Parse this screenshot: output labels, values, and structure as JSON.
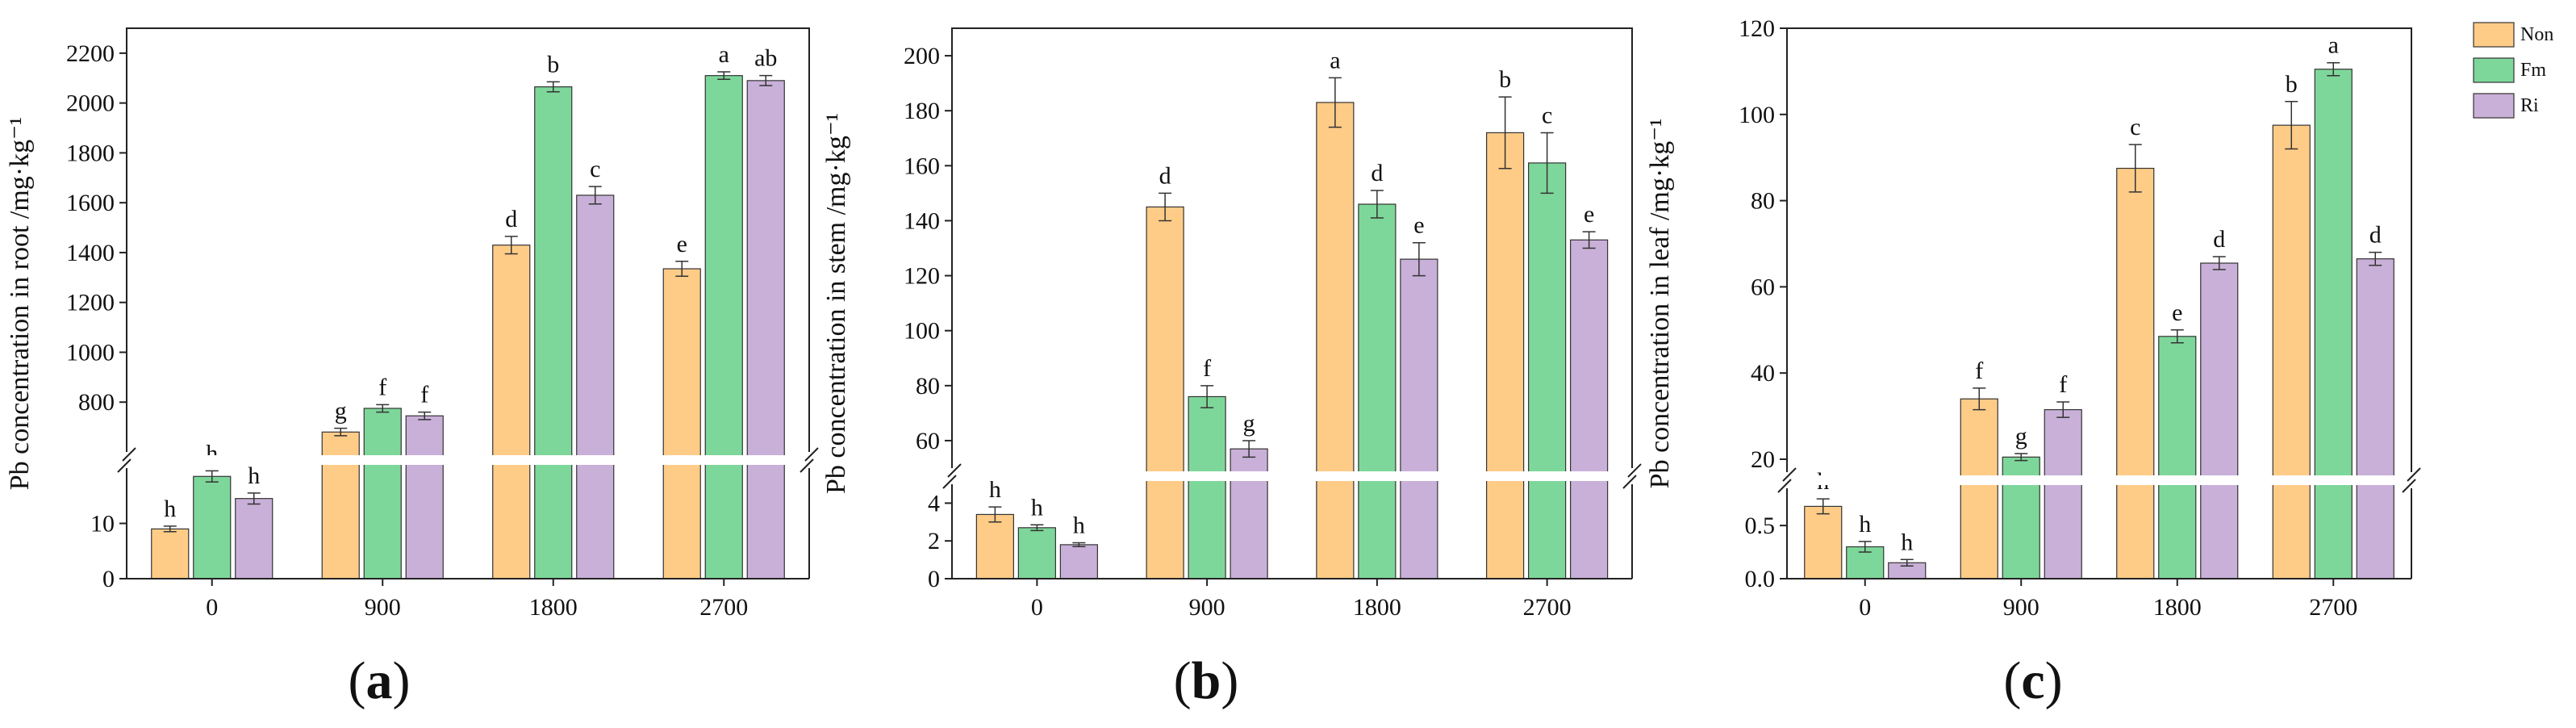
{
  "legend": {
    "entries": [
      "Non",
      "Fm",
      "Ri"
    ],
    "colors": [
      "#FFCC88",
      "#7ED79A",
      "#C9B0D8"
    ]
  },
  "chart_data": [
    {
      "type": "bar",
      "panel_label": "a",
      "ylabel": "Pb concentration in root /mg·kg⁻¹",
      "xlabel": "",
      "categories": [
        "0",
        "900",
        "1800",
        "2700"
      ],
      "series": [
        {
          "name": "Non",
          "values": [
            9,
            680,
            1430,
            1335
          ],
          "errors": [
            0.5,
            15,
            35,
            30
          ],
          "letters": [
            "h",
            "g",
            "d",
            "e"
          ]
        },
        {
          "name": "Fm",
          "values": [
            18.5,
            775,
            2065,
            2110
          ],
          "errors": [
            1,
            15,
            20,
            15
          ],
          "letters": [
            "h",
            "f",
            "b",
            "a"
          ]
        },
        {
          "name": "Ri",
          "values": [
            14.5,
            745,
            1630,
            2090
          ],
          "errors": [
            1,
            15,
            35,
            20
          ],
          "letters": [
            "h",
            "f",
            "c",
            "ab"
          ]
        }
      ],
      "axis_break": {
        "lower_range": [
          0,
          20
        ],
        "upper_range": [
          600,
          2300
        ]
      },
      "lower_ticks": [
        0,
        10
      ],
      "upper_ticks": [
        800,
        1000,
        1200,
        1400,
        1600,
        1800,
        2000,
        2200
      ]
    },
    {
      "type": "bar",
      "panel_label": "b",
      "ylabel": "Pb concentration in stem /mg·kg⁻¹",
      "xlabel": "",
      "categories": [
        "0",
        "900",
        "1800",
        "2700"
      ],
      "series": [
        {
          "name": "Non",
          "values": [
            3.4,
            145,
            183,
            172
          ],
          "errors": [
            0.4,
            5,
            9,
            13
          ],
          "letters": [
            "h",
            "d",
            "a",
            "b"
          ]
        },
        {
          "name": "Fm",
          "values": [
            2.7,
            76,
            146,
            161
          ],
          "errors": [
            0.15,
            4,
            5,
            11
          ],
          "letters": [
            "h",
            "f",
            "d",
            "c"
          ]
        },
        {
          "name": "Ri",
          "values": [
            1.8,
            57,
            126,
            133
          ],
          "errors": [
            0.1,
            3,
            6,
            3
          ],
          "letters": [
            "h",
            "g",
            "e",
            "e"
          ]
        }
      ],
      "axis_break": {
        "lower_range": [
          0,
          5
        ],
        "upper_range": [
          50,
          210
        ]
      },
      "lower_ticks": [
        0,
        2,
        4
      ],
      "upper_ticks": [
        60,
        80,
        100,
        120,
        140,
        160,
        180,
        200
      ]
    },
    {
      "type": "bar",
      "panel_label": "c",
      "ylabel": "Pb concentration in leaf /mg·kg⁻¹",
      "xlabel": "",
      "categories": [
        "0",
        "900",
        "1800",
        "2700"
      ],
      "series": [
        {
          "name": "Non",
          "values": [
            0.68,
            34,
            87.5,
            97.5
          ],
          "errors": [
            0.07,
            2.5,
            5.5,
            5.5
          ],
          "letters": [
            "h",
            "f",
            "c",
            "b"
          ]
        },
        {
          "name": "Fm",
          "values": [
            0.3,
            20.5,
            48.5,
            110.5
          ],
          "errors": [
            0.05,
            0.8,
            1.5,
            1.5
          ],
          "letters": [
            "h",
            "g",
            "e",
            "a"
          ]
        },
        {
          "name": "Ri",
          "values": [
            0.15,
            31.5,
            65.5,
            66.5
          ],
          "errors": [
            0.03,
            1.8,
            1.5,
            1.5
          ],
          "letters": [
            "h",
            "f",
            "d",
            "d"
          ]
        }
      ],
      "axis_break": {
        "lower_range": [
          0,
          0.85
        ],
        "upper_range": [
          17,
          120
        ]
      },
      "lower_ticks": [
        "0.0",
        "0.5"
      ],
      "upper_ticks": [
        20,
        40,
        60,
        80,
        100,
        120
      ]
    }
  ]
}
